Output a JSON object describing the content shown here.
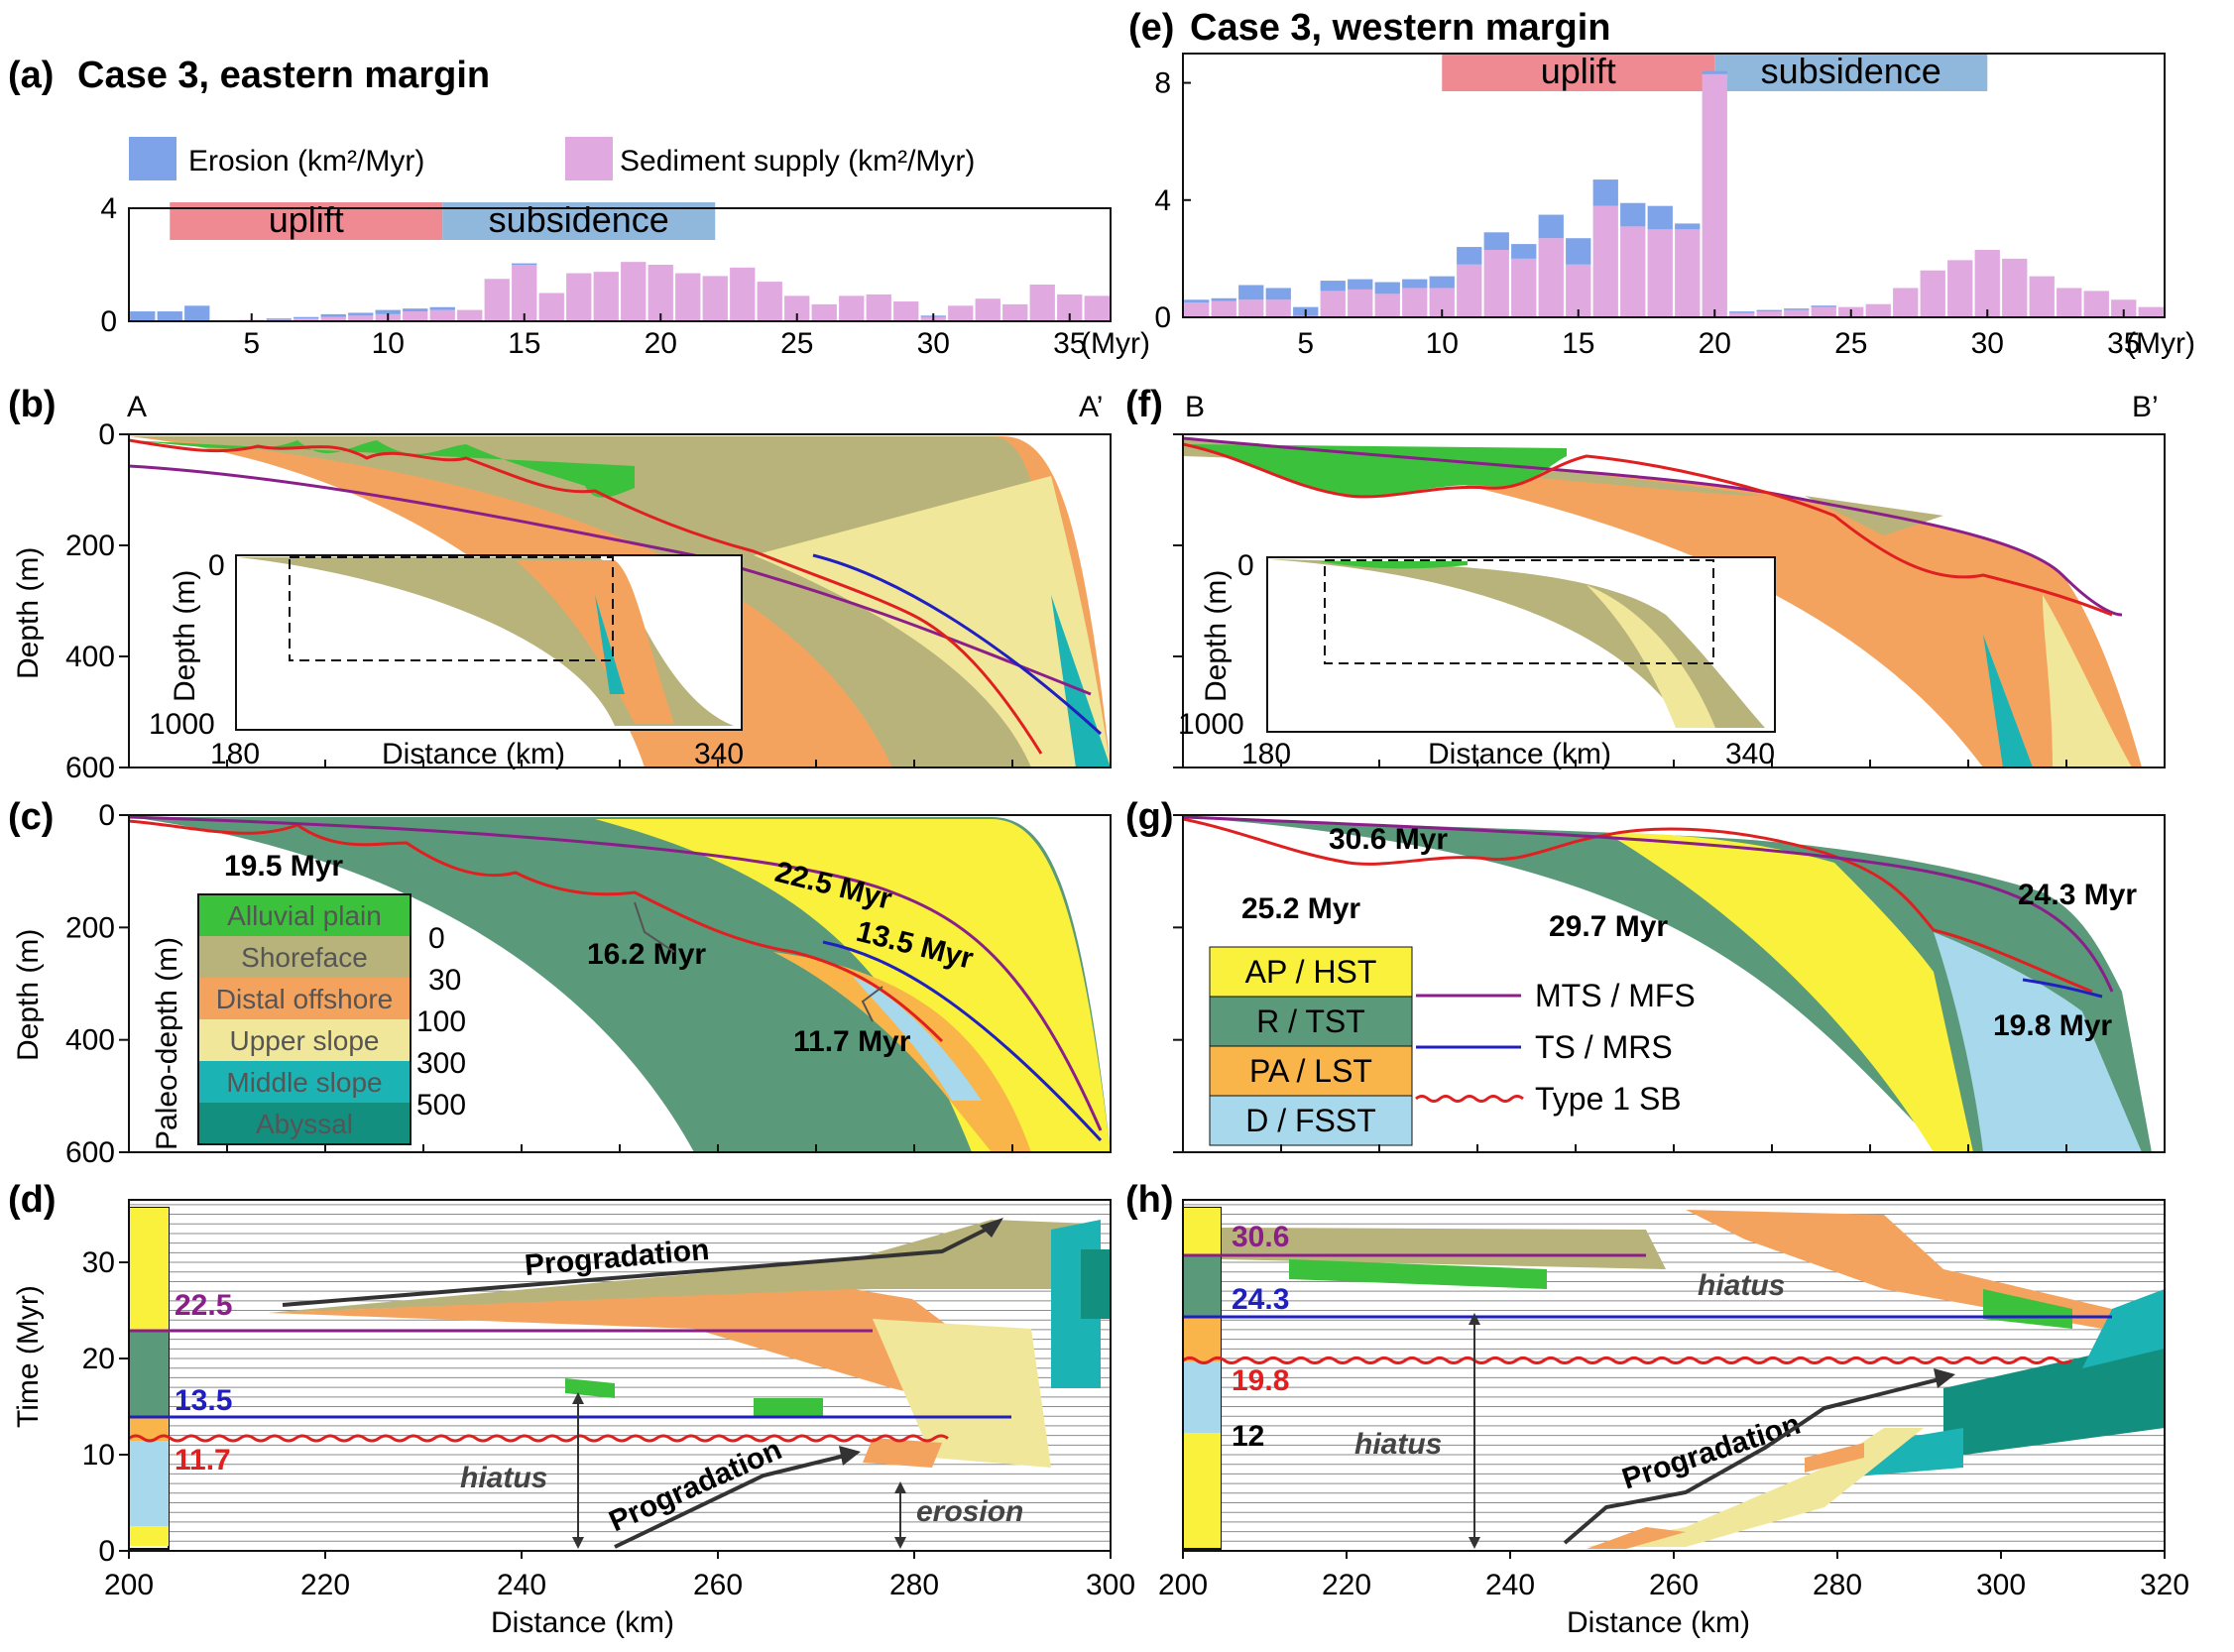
{
  "panels": {
    "a": {
      "letter": "(a)",
      "title": "Case 3, eastern margin"
    },
    "b": {
      "letter": "(b)",
      "left": "A",
      "right": "A’"
    },
    "c": {
      "letter": "(c)"
    },
    "d": {
      "letter": "(d)"
    },
    "e": {
      "letter": "(e)",
      "title": "Case 3, western margin"
    },
    "f": {
      "letter": "(f)",
      "left": "B",
      "right": "B’"
    },
    "g": {
      "letter": "(g)"
    },
    "h": {
      "letter": "(h)"
    }
  },
  "legend_top": {
    "erosion": "Erosion (km²/Myr)",
    "supply": "Sediment supply (km²/Myr)",
    "erosion_color": "#7ea3e8",
    "supply_color": "#e0a9e0"
  },
  "phases": {
    "uplift": "uplift",
    "subsidence": "subsidence",
    "uplift_color": "#ef8a93",
    "subsidence_color": "#8fb8dc"
  },
  "axes": {
    "time_unit": "(Myr)",
    "depth_label": "Depth (m)",
    "time_label": "Time (Myr)",
    "distance_label": "Distance (km)",
    "inset_depth_label": "Depth (m)",
    "inset_distance_label": "Distance (km)",
    "inset_x_ticks": [
      "180",
      "340"
    ],
    "inset_y_ticks": [
      "0",
      "1000"
    ],
    "depth_ticks": [
      "0",
      "200",
      "400",
      "600"
    ]
  },
  "chart_data": [
    {
      "panel": "a",
      "type": "bar",
      "x": [
        1,
        2,
        3,
        4,
        5,
        6,
        7,
        8,
        9,
        10,
        11,
        12,
        13,
        14,
        15,
        16,
        17,
        18,
        19,
        20,
        21,
        22,
        23,
        24,
        25,
        26,
        27,
        28,
        29,
        30,
        31,
        32,
        33,
        34,
        35,
        36
      ],
      "series": [
        {
          "name": "Erosion (km²/Myr)",
          "values": [
            0.35,
            0.35,
            0.55,
            0,
            0,
            0.05,
            0.05,
            0.1,
            0.1,
            0.15,
            0.1,
            0.1,
            0,
            0,
            0.05,
            0,
            0,
            0,
            0,
            0,
            0,
            0,
            0,
            0,
            0,
            0,
            0,
            0,
            0,
            0.05,
            0,
            0,
            0,
            0,
            0,
            0
          ]
        },
        {
          "name": "Sediment supply (km²/Myr)",
          "values": [
            0,
            0,
            0,
            0,
            0.05,
            0.05,
            0.1,
            0.15,
            0.2,
            0.25,
            0.35,
            0.4,
            0.4,
            1.5,
            2.0,
            1.0,
            1.7,
            1.75,
            2.1,
            2.0,
            1.7,
            1.6,
            1.9,
            1.4,
            0.9,
            0.6,
            0.9,
            0.95,
            0.7,
            0.15,
            0.55,
            0.8,
            0.6,
            1.3,
            0.95,
            0.9
          ]
        }
      ],
      "ylim": [
        0,
        4
      ],
      "y_ticks": [
        0,
        4
      ],
      "x_ticks": [
        5,
        10,
        15,
        20,
        25,
        30,
        35
      ],
      "phases": [
        {
          "label": "uplift",
          "start": 2,
          "end": 12
        },
        {
          "label": "subsidence",
          "start": 12,
          "end": 22
        }
      ]
    },
    {
      "panel": "e",
      "type": "bar",
      "x": [
        1,
        2,
        3,
        4,
        5,
        6,
        7,
        8,
        9,
        10,
        11,
        12,
        13,
        14,
        15,
        16,
        17,
        18,
        19,
        20,
        21,
        22,
        23,
        24,
        25,
        26,
        27,
        28,
        29,
        30,
        31,
        32,
        33,
        34,
        35,
        36
      ],
      "series": [
        {
          "name": "Erosion (km²/Myr)",
          "values": [
            0.1,
            0.1,
            0.5,
            0.4,
            0.3,
            0.35,
            0.35,
            0.4,
            0.3,
            0.4,
            0.6,
            0.6,
            0.5,
            0.8,
            0.9,
            0.9,
            0.8,
            0.8,
            0.2,
            0.1,
            0.05,
            0.05,
            0.05,
            0.05,
            0,
            0,
            0,
            0,
            0,
            0,
            0,
            0,
            0,
            0,
            0,
            0
          ]
        },
        {
          "name": "Sediment supply (km²/Myr)",
          "values": [
            0.5,
            0.55,
            0.6,
            0.6,
            0.05,
            0.9,
            0.95,
            0.8,
            1.0,
            1.0,
            1.8,
            2.3,
            2.0,
            2.7,
            1.8,
            3.8,
            3.1,
            3.0,
            3.0,
            8.3,
            0.15,
            0.2,
            0.25,
            0.35,
            0.35,
            0.45,
            1.0,
            1.6,
            1.95,
            2.3,
            2.0,
            1.4,
            1.0,
            0.9,
            0.6,
            0.35
          ]
        }
      ],
      "ylim": [
        0,
        9
      ],
      "y_ticks": [
        0,
        4,
        8
      ],
      "x_ticks": [
        5,
        10,
        15,
        20,
        25,
        30,
        35
      ],
      "phases": [
        {
          "label": "uplift",
          "start": 10,
          "end": 20
        },
        {
          "label": "subsidence",
          "start": 20,
          "end": 30
        }
      ]
    },
    {
      "panel": "d",
      "type": "area",
      "xlabel": "Distance (km)",
      "ylabel": "Time (Myr)",
      "x_ticks": [
        200,
        220,
        240,
        260,
        280,
        300
      ],
      "y_ticks": [
        0,
        10,
        20,
        30
      ],
      "surfaces": [
        {
          "label": "22.5",
          "time": 22.5,
          "kind": "MTS / MFS"
        },
        {
          "label": "13.5",
          "time": 13.5,
          "kind": "TS / MRS"
        },
        {
          "label": "11.7",
          "time": 11.7,
          "kind": "Type 1 SB"
        }
      ],
      "annotations": [
        "Progradation",
        "Progradation",
        "hiatus",
        "erosion"
      ]
    },
    {
      "panel": "h",
      "type": "area",
      "xlabel": "Distance (km)",
      "x_ticks": [
        200,
        220,
        240,
        260,
        280,
        300,
        320
      ],
      "surfaces": [
        {
          "label": "30.6",
          "time": 30.6,
          "kind": "MTS / MFS"
        },
        {
          "label": "24.3",
          "time": 24.3,
          "kind": "TS / MRS"
        },
        {
          "label": "19.8",
          "time": 19.8,
          "kind": "Type 1 SB"
        },
        {
          "label": "12",
          "time": 12
        }
      ],
      "annotations": [
        "hiatus",
        "hiatus",
        "Progradation"
      ]
    }
  ],
  "cross_sections": {
    "c_labels": [
      "19.5 Myr",
      "16.2 Myr",
      "22.5 Myr",
      "13.5 Myr",
      "11.7 Myr"
    ],
    "g_labels": [
      "30.6 Myr",
      "25.2 Myr",
      "29.7 Myr",
      "24.3 Myr",
      "19.8 Myr"
    ]
  },
  "legend_depth": {
    "title": "Paleo-depth (m)",
    "items": [
      {
        "label": "Alluvial plain",
        "color": "#3cc13c"
      },
      {
        "label": "Shoreface",
        "color": "#b8b37a"
      },
      {
        "label": "Distal offshore",
        "color": "#f4a35f"
      },
      {
        "label": "Upper slope",
        "color": "#f1e79a"
      },
      {
        "label": "Middle slope",
        "color": "#1bb3b3"
      },
      {
        "label": "Abyssal",
        "color": "#138f80"
      }
    ],
    "depths": [
      "0",
      "30",
      "100",
      "300",
      "500"
    ]
  },
  "legend_systems": {
    "items": [
      {
        "label": "AP / HST",
        "color": "#f9f13c"
      },
      {
        "label": "R / TST",
        "color": "#5a9a7a"
      },
      {
        "label": "PA / LST",
        "color": "#f9b54a"
      },
      {
        "label": "D / FSST",
        "color": "#a7d8ec"
      }
    ],
    "lines": [
      {
        "label": "MTS / MFS",
        "color": "#8a1f8a"
      },
      {
        "label": "TS / MRS",
        "color": "#2020c0"
      },
      {
        "label": "Type 1 SB",
        "color": "#e02020"
      }
    ]
  }
}
